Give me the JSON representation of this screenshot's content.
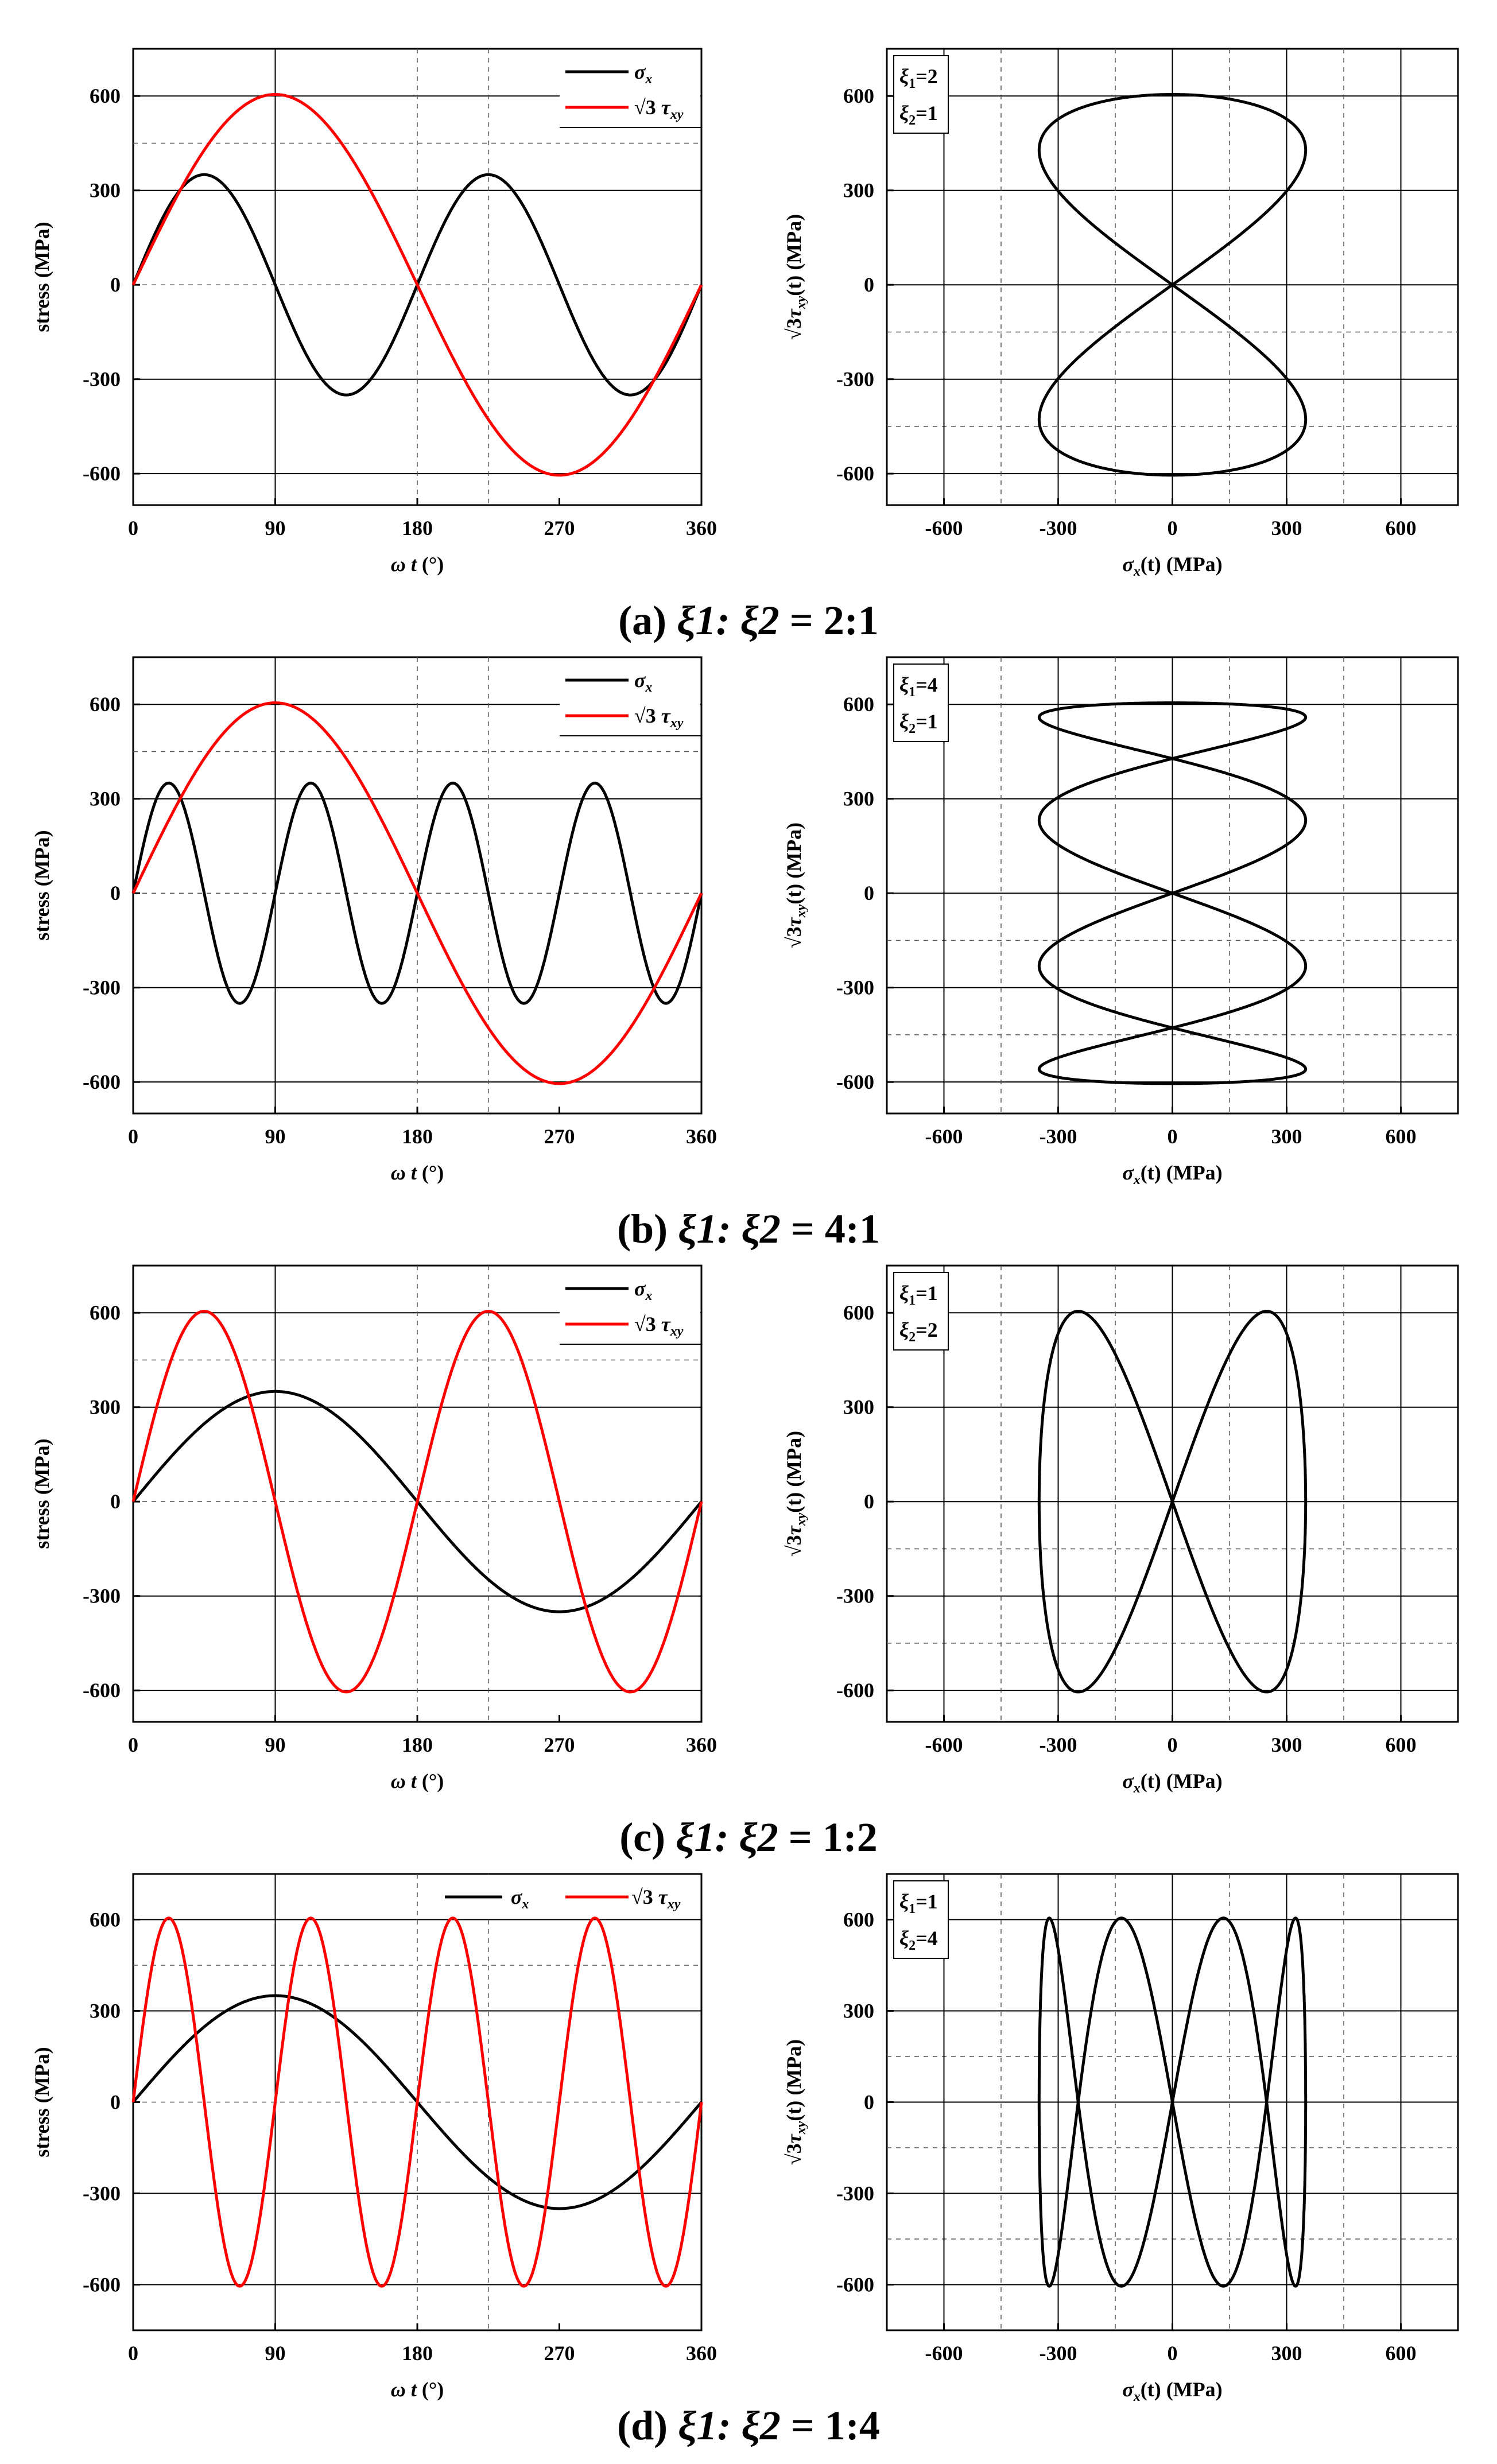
{
  "colors": {
    "sigma": "#000000",
    "tau": "#ff0000",
    "grid": "#000000",
    "dotted": "#555555"
  },
  "amplitudes": {
    "sigma_x": 350,
    "sqrt3_tau_xy": 605
  },
  "legend": {
    "sigma_x": "σ",
    "sigma_x_sub": "x",
    "tau_prefix": "√3",
    "tau": "τ",
    "tau_sub": "xy"
  },
  "time_axis": {
    "xlabel_omega": "ω",
    "xlabel_t": "t",
    "xlabel_unit": "(°)",
    "ylabel": "stress (MPa)"
  },
  "path_axis": {
    "xlabel": "σ",
    "xlabel_sub": "x",
    "xlabel_rest": "(t) (MPa)",
    "ylabel_prefix": "√3",
    "ylabel_tau": "τ",
    "ylabel_sub": "xy",
    "ylabel_rest": "(t) (MPa)"
  },
  "panels": [
    {
      "caption_label": "(a)",
      "caption_ratio": "ξ1: ξ2",
      "caption_value": " = 2:1",
      "xi1_label": "ξ1=2",
      "xi2_label": "ξ2=1",
      "xi1": 2,
      "xi2": 1
    },
    {
      "caption_label": "(b)",
      "caption_ratio": "ξ1: ξ2",
      "caption_value": " = 4:1",
      "xi1_label": "ξ1=4",
      "xi2_label": "ξ2=1",
      "xi1": 4,
      "xi2": 1
    },
    {
      "caption_label": "(c)",
      "caption_ratio": "ξ1: ξ2",
      "caption_value": " = 1:2",
      "xi1_label": "ξ1=1",
      "xi2_label": "ξ2=2",
      "xi1": 1,
      "xi2": 2
    },
    {
      "caption_label": "(d)",
      "caption_ratio": "ξ1: ξ2",
      "caption_value": " = 1:4",
      "xi1_label": "ξ1=1",
      "xi2_label": "ξ2=4",
      "xi1": 1,
      "xi2": 4
    }
  ],
  "chart_data": [
    {
      "type": "line",
      "panel": "a-time",
      "x_range": [
        0,
        360
      ],
      "xticks": [
        0,
        90,
        180,
        270,
        360
      ],
      "ylim": [
        -700,
        750
      ],
      "yticks": [
        -600,
        -300,
        0,
        300,
        600
      ],
      "series": [
        {
          "name": "σx",
          "formula": "350*sin(2*ωt)",
          "color": "#000000"
        },
        {
          "name": "√3τxy",
          "formula": "605*sin(1*ωt)",
          "color": "#ff0000"
        }
      ]
    },
    {
      "type": "line",
      "panel": "a-path",
      "xlim": [
        -750,
        750
      ],
      "xticks": [
        -600,
        -300,
        0,
        300,
        600
      ],
      "ylim": [
        -700,
        750
      ],
      "yticks": [
        -600,
        -300,
        0,
        300,
        600
      ],
      "series": [
        {
          "x": "σx(t)",
          "y": "√3τxy(t)",
          "color": "#000000"
        }
      ]
    },
    {
      "type": "line",
      "panel": "b-time",
      "x_range": [
        0,
        360
      ],
      "xticks": [
        0,
        90,
        180,
        270,
        360
      ],
      "ylim": [
        -700,
        750
      ],
      "yticks": [
        -600,
        -300,
        0,
        300,
        600
      ],
      "series": [
        {
          "name": "σx",
          "formula": "350*sin(4*ωt)",
          "color": "#000000"
        },
        {
          "name": "√3τxy",
          "formula": "605*sin(1*ωt)",
          "color": "#ff0000"
        }
      ]
    },
    {
      "type": "line",
      "panel": "b-path",
      "xlim": [
        -750,
        750
      ],
      "xticks": [
        -600,
        -300,
        0,
        300,
        600
      ],
      "ylim": [
        -700,
        750
      ],
      "yticks": [
        -600,
        -300,
        0,
        300,
        600
      ],
      "series": [
        {
          "x": "σx(t)",
          "y": "√3τxy(t)",
          "color": "#000000"
        }
      ]
    },
    {
      "type": "line",
      "panel": "c-time",
      "x_range": [
        0,
        360
      ],
      "xticks": [
        0,
        90,
        180,
        270,
        360
      ],
      "ylim": [
        -700,
        750
      ],
      "yticks": [
        -600,
        -300,
        0,
        300,
        600
      ],
      "series": [
        {
          "name": "σx",
          "formula": "350*sin(1*ωt)",
          "color": "#000000"
        },
        {
          "name": "√3τxy",
          "formula": "605*sin(2*ωt)",
          "color": "#ff0000"
        }
      ]
    },
    {
      "type": "line",
      "panel": "c-path",
      "xlim": [
        -750,
        750
      ],
      "xticks": [
        -600,
        -300,
        0,
        300,
        600
      ],
      "ylim": [
        -700,
        750
      ],
      "yticks": [
        -600,
        -300,
        0,
        300,
        600
      ],
      "series": [
        {
          "x": "σx(t)",
          "y": "√3τxy(t)",
          "color": "#000000"
        }
      ]
    },
    {
      "type": "line",
      "panel": "d-time",
      "x_range": [
        0,
        360
      ],
      "xticks": [
        0,
        90,
        180,
        270,
        360
      ],
      "ylim": [
        -750,
        750
      ],
      "yticks": [
        -600,
        -300,
        0,
        300,
        600
      ],
      "series": [
        {
          "name": "σx",
          "formula": "350*sin(1*ωt)",
          "color": "#000000"
        },
        {
          "name": "√3τxy",
          "formula": "605*sin(4*ωt)",
          "color": "#ff0000"
        }
      ]
    },
    {
      "type": "line",
      "panel": "d-path",
      "xlim": [
        -750,
        750
      ],
      "xticks": [
        -600,
        -300,
        0,
        300,
        600
      ],
      "ylim": [
        -750,
        750
      ],
      "yticks": [
        -600,
        -300,
        0,
        300,
        600
      ],
      "series": [
        {
          "x": "σx(t)",
          "y": "√3τxy(t)",
          "color": "#000000"
        }
      ]
    }
  ]
}
